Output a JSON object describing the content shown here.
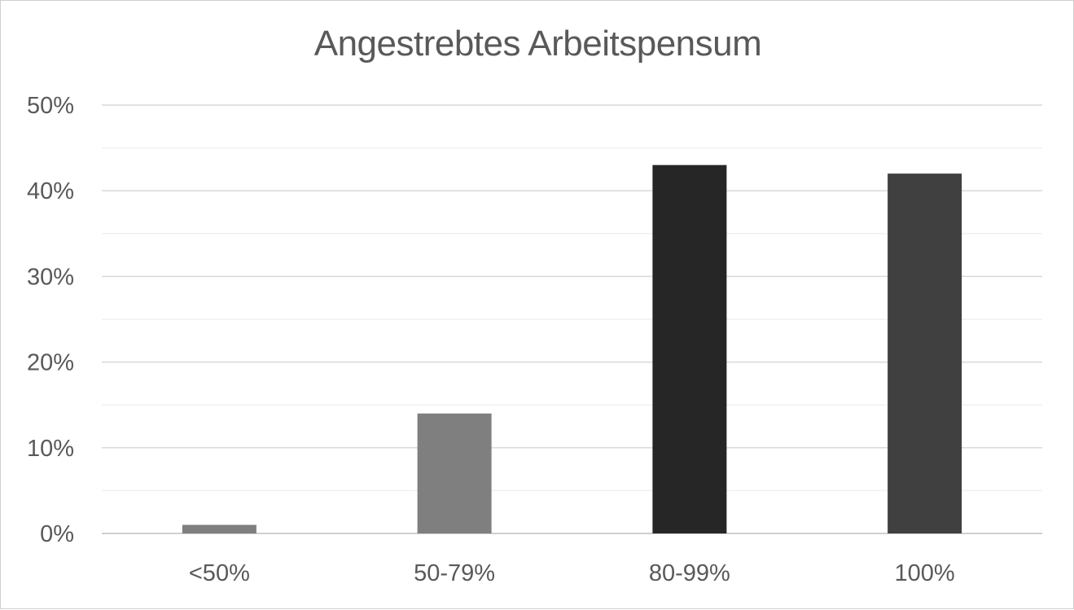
{
  "chart_data": {
    "type": "bar",
    "title": "Angestrebtes Arbeitspensum",
    "categories": [
      "<50%",
      "50-79%",
      "80-99%",
      "100%"
    ],
    "values": [
      1,
      14,
      43,
      42
    ],
    "value_unit": "%",
    "ylim": [
      0,
      50
    ],
    "yticks": [
      "0%",
      "10%",
      "20%",
      "30%",
      "40%",
      "50%"
    ],
    "ytick_values": [
      0,
      10,
      20,
      30,
      40,
      50
    ],
    "minor_gridlines": true,
    "grid": true,
    "legend": "none",
    "bar_colors": [
      "#7f7f7f",
      "#7f7f7f",
      "#262626",
      "#404040"
    ]
  }
}
